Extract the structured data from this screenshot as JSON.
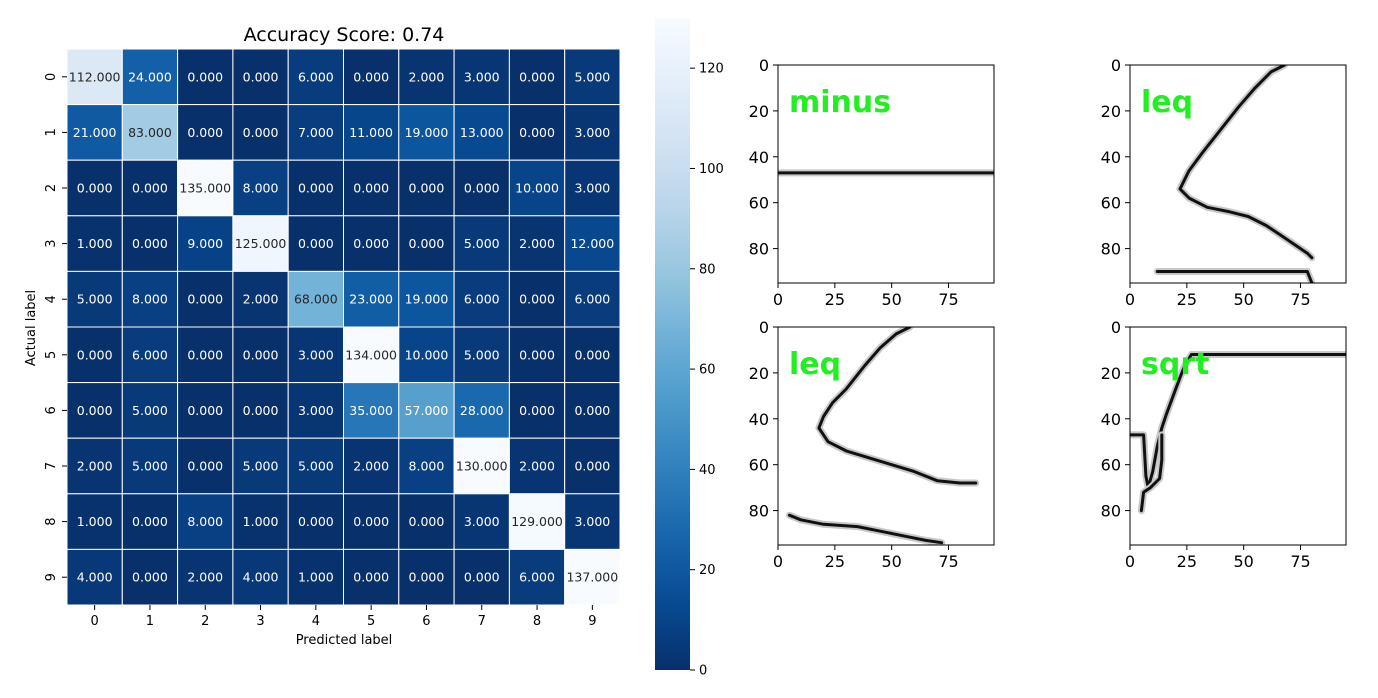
{
  "chart_data": [
    {
      "type": "heatmap",
      "title": "Accuracy Score: 0.74",
      "xlabel": "Predicted label",
      "ylabel": "Actual label",
      "x_tick_labels": [
        "0",
        "1",
        "2",
        "3",
        "4",
        "5",
        "6",
        "7",
        "8",
        "9"
      ],
      "y_tick_labels": [
        "0",
        "1",
        "2",
        "3",
        "4",
        "5",
        "6",
        "7",
        "8",
        "9"
      ],
      "values": [
        [
          112,
          24,
          0,
          0,
          6,
          0,
          2,
          3,
          0,
          5
        ],
        [
          21,
          83,
          0,
          0,
          7,
          11,
          19,
          13,
          0,
          3
        ],
        [
          0,
          0,
          135,
          8,
          0,
          0,
          0,
          0,
          10,
          3
        ],
        [
          1,
          0,
          9,
          125,
          0,
          0,
          0,
          5,
          2,
          12
        ],
        [
          5,
          8,
          0,
          2,
          68,
          23,
          19,
          6,
          0,
          6
        ],
        [
          0,
          6,
          0,
          0,
          3,
          134,
          10,
          5,
          0,
          0
        ],
        [
          0,
          5,
          0,
          0,
          3,
          35,
          57,
          28,
          0,
          0
        ],
        [
          2,
          5,
          0,
          5,
          5,
          2,
          8,
          130,
          2,
          0
        ],
        [
          1,
          0,
          8,
          1,
          0,
          0,
          0,
          3,
          129,
          3
        ],
        [
          4,
          0,
          2,
          4,
          1,
          0,
          0,
          0,
          6,
          137
        ]
      ],
      "value_format": "3 decimals",
      "colormap": "Blues",
      "color_range": [
        0,
        130
      ],
      "colorbar_ticks": [
        0,
        20,
        40,
        60,
        80,
        100,
        120
      ],
      "grid": true
    },
    {
      "type": "image",
      "overlay_text": "minus",
      "xlim": [
        0,
        95
      ],
      "ylim": [
        95,
        0
      ],
      "x_ticks": [
        0,
        25,
        50,
        75
      ],
      "y_ticks": [
        0,
        20,
        40,
        60,
        80
      ],
      "strokes": [
        [
          [
            0,
            47
          ],
          [
            95,
            47
          ]
        ]
      ]
    },
    {
      "type": "image",
      "overlay_text": "leq",
      "xlim": [
        0,
        95
      ],
      "ylim": [
        95,
        0
      ],
      "x_ticks": [
        0,
        25,
        50,
        75
      ],
      "y_ticks": [
        0,
        20,
        40,
        60,
        80
      ],
      "strokes": [
        [
          [
            68,
            0
          ],
          [
            62,
            3
          ],
          [
            55,
            10
          ],
          [
            48,
            18
          ],
          [
            40,
            28
          ],
          [
            32,
            38
          ],
          [
            26,
            46
          ],
          [
            22,
            54
          ],
          [
            26,
            58
          ],
          [
            34,
            62
          ],
          [
            44,
            64
          ],
          [
            52,
            66
          ],
          [
            60,
            70
          ],
          [
            66,
            74
          ],
          [
            72,
            78
          ],
          [
            78,
            82
          ],
          [
            80,
            84
          ]
        ],
        [
          [
            12,
            90
          ],
          [
            78,
            90
          ],
          [
            80,
            95
          ]
        ]
      ]
    },
    {
      "type": "image",
      "overlay_text": "leq",
      "xlim": [
        0,
        95
      ],
      "ylim": [
        95,
        0
      ],
      "x_ticks": [
        0,
        25,
        50,
        75
      ],
      "y_ticks": [
        0,
        20,
        40,
        60,
        80
      ],
      "strokes": [
        [
          [
            58,
            0
          ],
          [
            52,
            3
          ],
          [
            45,
            9
          ],
          [
            38,
            17
          ],
          [
            30,
            27
          ],
          [
            24,
            33
          ],
          [
            20,
            39
          ],
          [
            18,
            44
          ],
          [
            22,
            50
          ],
          [
            30,
            54
          ],
          [
            40,
            57
          ],
          [
            50,
            60
          ],
          [
            60,
            63
          ],
          [
            70,
            67
          ],
          [
            80,
            68
          ],
          [
            87,
            68
          ]
        ],
        [
          [
            5,
            82
          ],
          [
            10,
            84
          ],
          [
            20,
            86
          ],
          [
            35,
            87
          ],
          [
            45,
            89
          ],
          [
            55,
            91
          ],
          [
            65,
            93
          ],
          [
            72,
            94
          ]
        ]
      ]
    },
    {
      "type": "image",
      "overlay_text": "sqrt",
      "xlim": [
        0,
        95
      ],
      "ylim": [
        95,
        0
      ],
      "x_ticks": [
        0,
        25,
        50,
        75
      ],
      "y_ticks": [
        0,
        20,
        40,
        60,
        80
      ],
      "strokes": [
        [
          [
            0,
            47
          ],
          [
            6,
            47
          ],
          [
            7,
            65
          ],
          [
            8,
            70
          ],
          [
            10,
            63
          ],
          [
            12,
            52
          ],
          [
            14,
            44
          ],
          [
            16,
            38
          ],
          [
            19,
            30
          ],
          [
            22,
            22
          ],
          [
            24,
            17
          ],
          [
            27,
            12
          ],
          [
            95,
            12
          ]
        ],
        [
          [
            5,
            80
          ],
          [
            6,
            72
          ],
          [
            9,
            70
          ],
          [
            13,
            66
          ],
          [
            14,
            58
          ],
          [
            14,
            47
          ]
        ]
      ]
    }
  ]
}
